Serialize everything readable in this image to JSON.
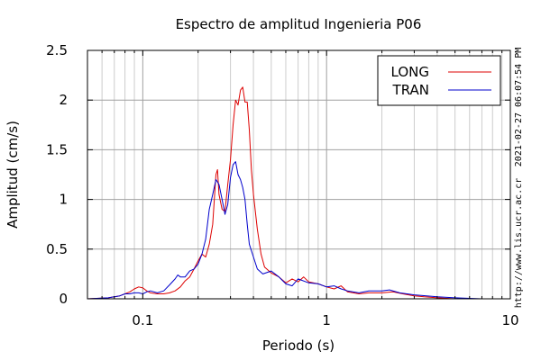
{
  "chart_data": {
    "type": "line",
    "title": "Espectro de amplitud Ingenieria P06",
    "xlabel": "Periodo (s)",
    "ylabel": "Amplitud (cm/s)",
    "x_scale": "log",
    "xlim": [
      0.05,
      10
    ],
    "ylim": [
      0,
      2.5
    ],
    "x_ticks": [
      0.1,
      1,
      10
    ],
    "x_tick_labels": [
      "0.1",
      "1",
      "10"
    ],
    "y_ticks": [
      0,
      0.5,
      1,
      1.5,
      2,
      2.5
    ],
    "y_tick_labels": [
      "0",
      "0.5",
      "1",
      "1.5",
      "2",
      "2.5"
    ],
    "grid": true,
    "legend_position": "top-right",
    "series": [
      {
        "name": "LONG",
        "color": "#dd0000",
        "x": [
          0.05,
          0.065,
          0.075,
          0.085,
          0.09,
          0.095,
          0.1,
          0.105,
          0.11,
          0.12,
          0.13,
          0.14,
          0.15,
          0.16,
          0.17,
          0.18,
          0.19,
          0.2,
          0.21,
          0.22,
          0.23,
          0.24,
          0.245,
          0.25,
          0.255,
          0.26,
          0.27,
          0.28,
          0.29,
          0.3,
          0.31,
          0.32,
          0.33,
          0.34,
          0.35,
          0.36,
          0.37,
          0.38,
          0.39,
          0.4,
          0.42,
          0.44,
          0.46,
          0.5,
          0.55,
          0.6,
          0.65,
          0.7,
          0.75,
          0.8,
          0.9,
          1.0,
          1.1,
          1.2,
          1.3,
          1.5,
          1.7,
          2.0,
          2.3,
          2.6,
          3.0,
          3.4,
          4.0,
          5.0,
          7.0,
          10.0
        ],
        "y": [
          0,
          0.01,
          0.03,
          0.07,
          0.1,
          0.12,
          0.11,
          0.08,
          0.06,
          0.05,
          0.05,
          0.06,
          0.08,
          0.12,
          0.18,
          0.22,
          0.3,
          0.38,
          0.45,
          0.42,
          0.55,
          0.75,
          1.0,
          1.25,
          1.3,
          1.05,
          0.9,
          0.88,
          1.15,
          1.4,
          1.75,
          2.0,
          1.95,
          2.1,
          2.13,
          1.98,
          1.98,
          1.7,
          1.3,
          1.05,
          0.7,
          0.45,
          0.32,
          0.26,
          0.22,
          0.16,
          0.2,
          0.17,
          0.22,
          0.17,
          0.15,
          0.12,
          0.1,
          0.13,
          0.07,
          0.05,
          0.06,
          0.06,
          0.07,
          0.05,
          0.03,
          0.02,
          0.01,
          0,
          0,
          0
        ]
      },
      {
        "name": "TRAN",
        "color": "#0000cc",
        "x": [
          0.05,
          0.065,
          0.075,
          0.08,
          0.085,
          0.09,
          0.095,
          0.1,
          0.105,
          0.11,
          0.12,
          0.13,
          0.14,
          0.15,
          0.155,
          0.16,
          0.17,
          0.18,
          0.19,
          0.2,
          0.21,
          0.22,
          0.23,
          0.24,
          0.25,
          0.26,
          0.27,
          0.28,
          0.29,
          0.3,
          0.31,
          0.32,
          0.33,
          0.34,
          0.35,
          0.36,
          0.37,
          0.38,
          0.4,
          0.42,
          0.45,
          0.5,
          0.55,
          0.6,
          0.65,
          0.7,
          0.8,
          0.9,
          1.0,
          1.1,
          1.2,
          1.3,
          1.5,
          1.7,
          2.0,
          2.2,
          2.5,
          3.0,
          3.5,
          4.0,
          5.0,
          7.0,
          10.0
        ],
        "y": [
          0,
          0.01,
          0.03,
          0.05,
          0.05,
          0.06,
          0.06,
          0.05,
          0.07,
          0.08,
          0.06,
          0.08,
          0.14,
          0.2,
          0.24,
          0.22,
          0.22,
          0.28,
          0.3,
          0.35,
          0.45,
          0.6,
          0.9,
          1.05,
          1.2,
          1.15,
          1.0,
          0.85,
          0.95,
          1.22,
          1.35,
          1.38,
          1.25,
          1.2,
          1.12,
          1.0,
          0.75,
          0.55,
          0.42,
          0.3,
          0.25,
          0.28,
          0.22,
          0.15,
          0.13,
          0.2,
          0.16,
          0.15,
          0.12,
          0.13,
          0.1,
          0.08,
          0.06,
          0.08,
          0.08,
          0.09,
          0.06,
          0.04,
          0.03,
          0.02,
          0.01,
          0,
          0
        ]
      }
    ]
  },
  "side_text": {
    "timestamp": "2021-02-27 06:07:54 PM",
    "url": "http://www.lis.ucr.ac.cr"
  }
}
